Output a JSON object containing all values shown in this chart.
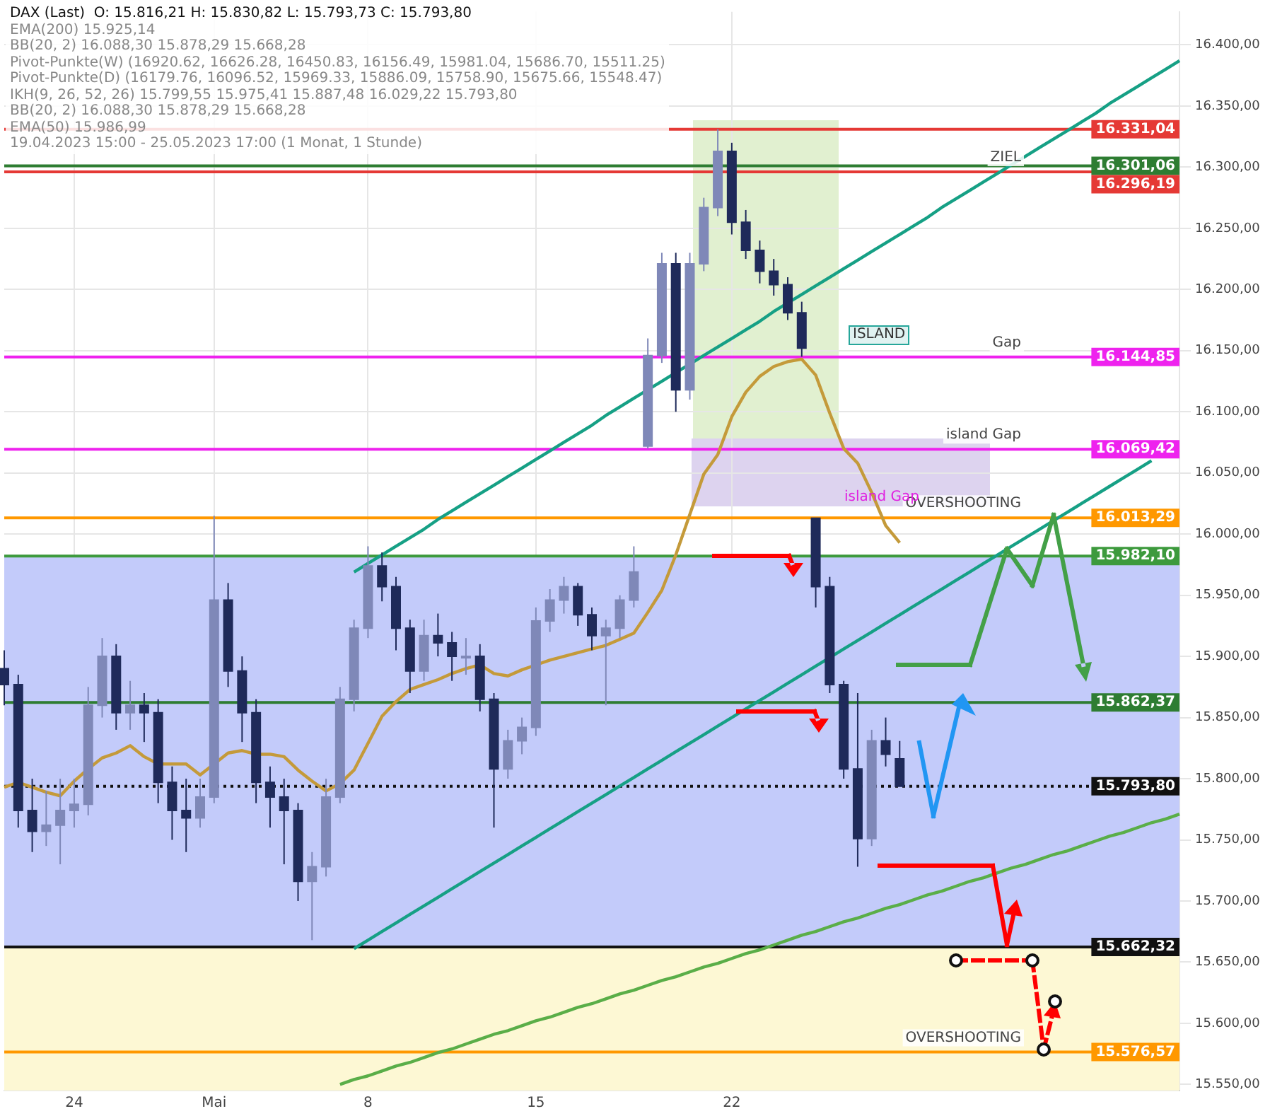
{
  "chart_data": {
    "type": "candlestick",
    "title": "DAX (Last)",
    "subtitle": "O: 15.816,21  H: 15.830,82  L: 15.793,73  C: 15.793,80",
    "colors": [
      "#1f2a5a",
      "#1f2a5a",
      "#1f2a5a",
      "#7f88b8",
      "#7f88b8",
      "#7f88b8",
      "#7f88b8",
      "#7f88b8",
      "#1f2a5a",
      "#7f88b8",
      "#1f2a5a",
      "#1f2a5a",
      "#1f2a5a",
      "#1f2a5a",
      "#7f88b8",
      "#7f88b8",
      "#1f2a5a",
      "#1f2a5a",
      "#1f2a5a",
      "#1f2a5a",
      "#1f2a5a",
      "#1f2a5a",
      "#7f88b8",
      "#7f88b8",
      "#7f88b8",
      "#7f88b8",
      "#7f88b8",
      "#1f2a5a",
      "#1f2a5a",
      "#1f2a5a",
      "#7f88b8",
      "#1f2a5a",
      "#1f2a5a",
      "#7f88b8",
      "#1f2a5a",
      "#1f2a5a",
      "#7f88b8",
      "#7f88b8",
      "#7f88b8",
      "#7f88b8",
      "#7f88b8",
      "#1f2a5a",
      "#1f2a5a",
      "#7f88b8",
      "#7f88b8",
      "#7f88b8",
      "#7f88b8",
      "#7f88b8",
      "#1f2a5a",
      "#7f88b8",
      "#7f88b8",
      "#7f88b8",
      "#1f2a5a",
      "#1f2a5a",
      "#1f2a5a",
      "#1f2a5a",
      "#1f2a5a",
      "#1f2a5a",
      "#1f2a5a",
      "#1f2a5a",
      "#1f2a5a",
      "#1f2a5a",
      "#7f88b8",
      "#1f2a5a",
      "#1f2a5a",
      null,
      null,
      null,
      null,
      null,
      null,
      null,
      null,
      null,
      null,
      null,
      null,
      null,
      null,
      null,
      null,
      null,
      null,
      null,
      null
    ],
    "categories": [
      null,
      null,
      null,
      null,
      null,
      "24",
      null,
      null,
      null,
      null,
      null,
      null,
      null,
      null,
      null,
      "Mai",
      null,
      null,
      null,
      null,
      null,
      null,
      null,
      null,
      null,
      null,
      "8",
      null,
      null,
      null,
      null,
      null,
      null,
      null,
      null,
      null,
      null,
      null,
      "15",
      null,
      null,
      null,
      null,
      null,
      null,
      null,
      null,
      null,
      null,
      null,
      null,
      null,
      "22",
      null,
      null,
      null,
      null,
      null,
      null,
      null,
      null,
      null,
      null,
      null,
      null,
      null,
      null,
      null,
      null,
      null,
      null,
      null,
      null,
      null,
      null,
      null,
      null,
      null,
      null,
      null,
      null,
      null,
      null,
      null,
      null
    ],
    "ohlc": [
      [
        15890,
        15905,
        15860,
        15877
      ],
      [
        15877,
        15885,
        15760,
        15774
      ],
      [
        15774,
        15800,
        15740,
        15757
      ],
      [
        15757,
        15790,
        15745,
        15762
      ],
      [
        15762,
        15800,
        15730,
        15774
      ],
      [
        15774,
        15800,
        15760,
        15779
      ],
      [
        15779,
        15875,
        15770,
        15860
      ],
      [
        15860,
        15915,
        15850,
        15900
      ],
      [
        15900,
        15910,
        15840,
        15854
      ],
      [
        15854,
        15880,
        15840,
        15860
      ],
      [
        15860,
        15870,
        15830,
        15854
      ],
      [
        15854,
        15865,
        15780,
        15797
      ],
      [
        15797,
        15810,
        15750,
        15774
      ],
      [
        15774,
        15800,
        15740,
        15768
      ],
      [
        15768,
        15800,
        15760,
        15785
      ],
      [
        15785,
        16015,
        15780,
        15946
      ],
      [
        15946,
        15960,
        15875,
        15888
      ],
      [
        15888,
        15900,
        15830,
        15854
      ],
      [
        15854,
        15865,
        15780,
        15797
      ],
      [
        15797,
        15810,
        15760,
        15785
      ],
      [
        15785,
        15800,
        15730,
        15774
      ],
      [
        15774,
        15780,
        15700,
        15716
      ],
      [
        15716,
        15740,
        15668,
        15728
      ],
      [
        15728,
        15800,
        15720,
        15785
      ],
      [
        15785,
        15875,
        15780,
        15865
      ],
      [
        15865,
        15930,
        15855,
        15923
      ],
      [
        15923,
        15990,
        15915,
        15974
      ],
      [
        15974,
        15985,
        15945,
        15957
      ],
      [
        15957,
        15965,
        15905,
        15923
      ],
      [
        15923,
        15930,
        15870,
        15888
      ],
      [
        15888,
        15930,
        15880,
        15917
      ],
      [
        15917,
        15935,
        15900,
        15911
      ],
      [
        15911,
        15920,
        15880,
        15900
      ],
      [
        15900,
        15915,
        15885,
        15900
      ],
      [
        15900,
        15910,
        15855,
        15865
      ],
      [
        15865,
        15870,
        15760,
        15808
      ],
      [
        15808,
        15840,
        15800,
        15831
      ],
      [
        15831,
        15850,
        15820,
        15842
      ],
      [
        15842,
        15940,
        15835,
        15929
      ],
      [
        15929,
        15955,
        15920,
        15946
      ],
      [
        15946,
        15965,
        15935,
        15957
      ],
      [
        15957,
        15960,
        15925,
        15934
      ],
      [
        15934,
        15940,
        15905,
        15917
      ],
      [
        15917,
        15930,
        15860,
        15923
      ],
      [
        15923,
        15950,
        15915,
        15946
      ],
      [
        15946,
        15990,
        15940,
        15969
      ],
      [
        16072,
        16160,
        16070,
        16146
      ],
      [
        16146,
        16230,
        16140,
        16221
      ],
      [
        16221,
        16230,
        16100,
        16118
      ],
      [
        16118,
        16230,
        16110,
        16221
      ],
      [
        16221,
        16275,
        16215,
        16267
      ],
      [
        16267,
        16331,
        16260,
        16313
      ],
      [
        16313,
        16320,
        16245,
        16255
      ],
      [
        16255,
        16265,
        16225,
        16232
      ],
      [
        16232,
        16240,
        16205,
        16215
      ],
      [
        16215,
        16225,
        16195,
        16204
      ],
      [
        16204,
        16210,
        16175,
        16181
      ],
      [
        16181,
        16190,
        16145,
        16152
      ],
      [
        16013,
        16013,
        15940,
        15957
      ],
      [
        15957,
        15965,
        15870,
        15877
      ],
      [
        15877,
        15880,
        15800,
        15808
      ],
      [
        15808,
        15870,
        15728,
        15751
      ],
      [
        15751,
        15840,
        15745,
        15831
      ],
      [
        15831,
        15850,
        15810,
        15820
      ],
      [
        15816.21,
        15830.82,
        15793.73,
        15793.8
      ],
      null,
      null,
      null,
      null,
      null,
      null,
      null,
      null,
      null,
      null,
      null,
      null,
      null,
      null,
      null,
      null,
      null,
      null,
      null,
      null
    ],
    "series": [
      {
        "type": "line",
        "color": "#c49a3a",
        "values": [
          15793,
          15797,
          15793,
          15789,
          15786,
          15798,
          15808,
          15817,
          15821,
          15827,
          15818,
          15812,
          15812,
          15812,
          15803,
          15812,
          15821,
          15823,
          15820,
          15820,
          15818,
          15807,
          15798,
          15790,
          15796,
          15807,
          15829,
          15851,
          15863,
          15873,
          15877,
          15881,
          15886,
          15890,
          15893,
          15886,
          15884,
          15889,
          15893,
          15897,
          15900,
          15903,
          15906,
          15909,
          15914,
          15919,
          15936,
          15954,
          15983,
          16016,
          16049,
          16065,
          16096,
          16116,
          16129,
          16137,
          16141,
          16143,
          16130,
          16099,
          16070,
          16058,
          16034,
          16007,
          15993,
          null,
          null,
          null,
          null,
          null,
          null,
          null,
          null,
          null,
          null,
          null,
          null,
          null,
          null,
          null,
          null,
          null,
          null,
          null,
          null
        ]
      },
      {
        "type": "line",
        "color": "#16a085",
        "values": [
          null,
          null,
          null,
          null,
          null,
          null,
          null,
          null,
          null,
          null,
          null,
          null,
          null,
          null,
          null,
          null,
          null,
          null,
          null,
          null,
          null,
          null,
          null,
          null,
          null,
          15969,
          15976,
          15983,
          15990,
          15997,
          16004,
          16012,
          16019,
          16026,
          16033,
          16040,
          16047,
          16054,
          16061,
          16068,
          16075,
          16082,
          16089,
          16097,
          16104,
          16111,
          16118,
          16125,
          16132,
          16139,
          16146,
          16153,
          16160,
          16167,
          16174,
          16182,
          16189,
          16196,
          16203,
          16210,
          16217,
          16224,
          16231,
          16238,
          16245,
          16252,
          16259,
          16267,
          16274,
          16281,
          16288,
          16295,
          16302,
          16309,
          16316,
          16323,
          16330,
          16337,
          16344,
          16352,
          16359,
          16366,
          16373,
          16380,
          16387
        ]
      },
      {
        "type": "line",
        "color": "#16a085",
        "values": [
          null,
          null,
          null,
          null,
          null,
          null,
          null,
          null,
          null,
          null,
          null,
          null,
          null,
          null,
          null,
          null,
          null,
          null,
          null,
          null,
          null,
          null,
          null,
          null,
          null,
          15661,
          15668,
          15675,
          15682,
          15689,
          15696,
          15703,
          15710,
          15717,
          15724,
          15731,
          15738,
          15745,
          15752,
          15759,
          15766,
          15773,
          15780,
          15787,
          15794,
          15801,
          15808,
          15815,
          15822,
          15829,
          15836,
          15843,
          15850,
          15857,
          15864,
          15871,
          15878,
          15885,
          15892,
          15899,
          15906,
          15913,
          15920,
          15927,
          15934,
          15941,
          15948,
          15955,
          15962,
          15969,
          15976,
          15983,
          15990,
          15997,
          16004,
          16011,
          16018,
          16025,
          16032,
          16039,
          16046,
          16053,
          16060,
          null,
          null
        ]
      },
      {
        "type": "line",
        "color": "#5aae48",
        "values": [
          null,
          null,
          null,
          null,
          null,
          null,
          null,
          null,
          null,
          null,
          null,
          null,
          null,
          null,
          null,
          null,
          null,
          null,
          null,
          null,
          null,
          null,
          null,
          null,
          15550,
          15554,
          15557,
          15561,
          15565,
          15568,
          15572,
          15576,
          15579,
          15583,
          15587,
          15591,
          15594,
          15598,
          15602,
          15605,
          15609,
          15613,
          15616,
          15620,
          15624,
          15627,
          15631,
          15635,
          15638,
          15642,
          15646,
          15649,
          15653,
          15657,
          15660,
          15664,
          15668,
          15672,
          15675,
          15679,
          15683,
          15686,
          15690,
          15694,
          15697,
          15701,
          15705,
          15708,
          15712,
          15716,
          15719,
          15723,
          15727,
          15730,
          15734,
          15738,
          15741,
          15745,
          15749,
          15753,
          15756,
          15760,
          15764,
          15767,
          15771
        ]
      }
    ],
    "ylim": [
      15545,
      16427
    ],
    "yticks": [
      {
        "value": 15550,
        "label": "15.550,00"
      },
      {
        "value": 15600,
        "label": "15.600,00"
      },
      {
        "value": 15650,
        "label": "15.650,00"
      },
      {
        "value": 15700,
        "label": "15.700,00"
      },
      {
        "value": 15750,
        "label": "15.750,00"
      },
      {
        "value": 15800,
        "label": "15.800,00"
      },
      {
        "value": 15850,
        "label": "15.850,00"
      },
      {
        "value": 15900,
        "label": "15.900,00"
      },
      {
        "value": 15950,
        "label": "15.950,00"
      },
      {
        "value": 16000,
        "label": "16.000,00"
      },
      {
        "value": 16050,
        "label": "16.050,00"
      },
      {
        "value": 16100,
        "label": "16.100,00"
      },
      {
        "value": 16150,
        "label": "16.150,00"
      },
      {
        "value": 16200,
        "label": "16.200,00"
      },
      {
        "value": 16250,
        "label": "16.250,00"
      },
      {
        "value": 16300,
        "label": "16.300,00"
      },
      {
        "value": 16350,
        "label": "16.350,00"
      },
      {
        "value": 16400,
        "label": "16.400,00"
      }
    ],
    "grid": true,
    "bands": [
      {
        "axis": "y",
        "from": 15662.32,
        "to": 15982.1,
        "color": "#c3cbfa"
      },
      {
        "axis": "y",
        "from": 15545,
        "to": 15662.32,
        "color": "#fdf8d4"
      }
    ],
    "ref_lines": [
      {
        "axis": "y",
        "value": 16331.04,
        "label": "16.331,04",
        "color": "#e53935"
      },
      {
        "axis": "y",
        "value": 16301.06,
        "label": "16.301,06",
        "color": "#2e7d32"
      },
      {
        "axis": "y",
        "value": 16296.19,
        "label": "16.296,19",
        "color": "#e53935"
      },
      {
        "axis": "y",
        "value": 16144.85,
        "label": "16.144,85",
        "color": "#ee22ee"
      },
      {
        "axis": "y",
        "value": 16069.42,
        "label": "16.069,42",
        "color": "#ee22ee"
      },
      {
        "axis": "y",
        "value": 16013.29,
        "label": "16.013,29",
        "color": "#ff9800"
      },
      {
        "axis": "y",
        "value": 15982.1,
        "label": "15.982,10",
        "color": "#3d9a3d"
      },
      {
        "axis": "y",
        "value": 15862.37,
        "label": "15.862,37",
        "color": "#2e7d32"
      },
      {
        "axis": "y",
        "value": 15793.8,
        "label": "15.793,80",
        "color": "#111111",
        "line_style": "dotted"
      },
      {
        "axis": "y",
        "value": 15662.32,
        "label": "15.662,32",
        "color": "#111111"
      },
      {
        "axis": "y",
        "value": 15576.57,
        "label": "15.576,57",
        "color": "#ff9800"
      }
    ],
    "annotations": [
      "EMA(200)  15.925,14",
      "BB(20, 2)  16.088,30  15.878,29  15.668,28",
      "Pivot-Punkte(W)  (16920.62, 16626.28, 16450.83, 16156.49, 15981.04, 15686.70, 15511.25)",
      "Pivot-Punkte(D)  (16179.76, 16096.52, 15969.33, 15886.09, 15758.90, 15675.66, 15548.47)",
      "IKH(9, 26, 52, 26)  15.799,55  15.975,41  15.887,48  16.029,22  15.793,80",
      "BB(20, 2)  16.088,30  15.878,29  15.668,28",
      "EMA(50)  15.986,99",
      "19.04.2023 15:00 - 25.05.2023 17:00  (1 Monat, 1 Stunde)",
      "ISLAND",
      "island Gap",
      {
        "text": "ZIEL",
        "y": 16296.19
      },
      {
        "text": "Gap",
        "y": 16144.85
      },
      {
        "text": "island Gap",
        "y": 16069.42
      },
      {
        "text": "OVERSHOOTING",
        "y": 16013.29
      },
      {
        "text": "OVERSHOOTING",
        "y": 15576.57
      }
    ]
  }
}
